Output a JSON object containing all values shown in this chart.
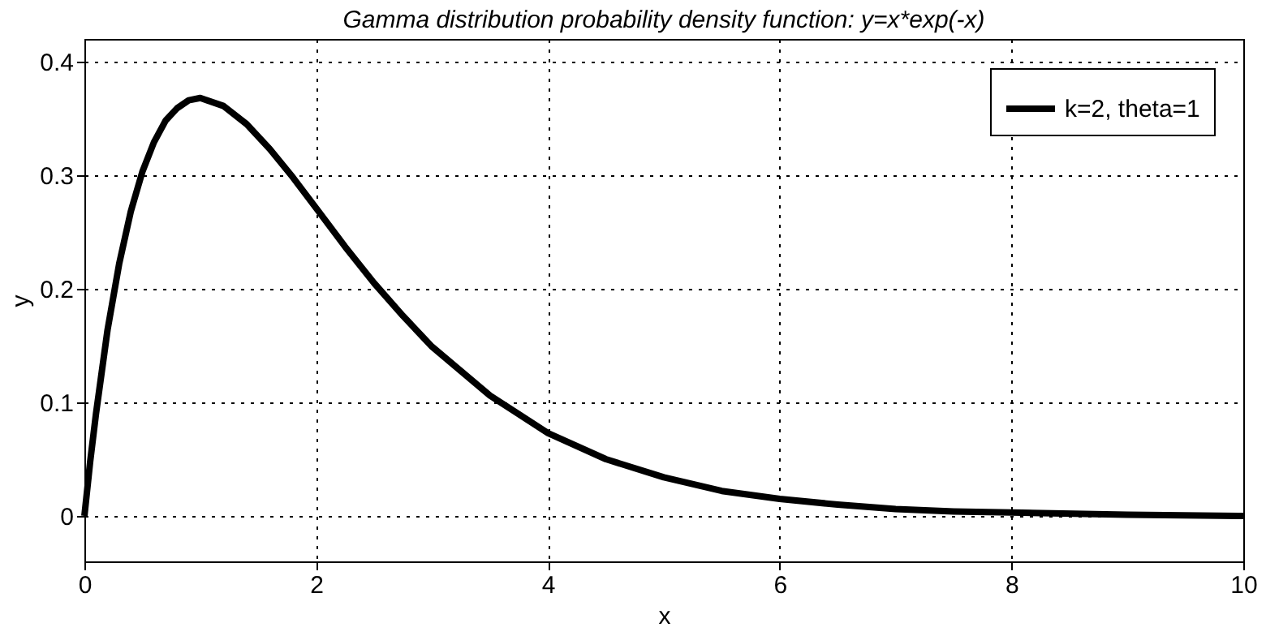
{
  "chart_data": {
    "type": "line",
    "title": "Gamma distribution probability density function: y=x*exp(-x)",
    "xlabel": "x",
    "ylabel": "y",
    "x": [
      0,
      0.05,
      0.1,
      0.2,
      0.3,
      0.4,
      0.5,
      0.6,
      0.7,
      0.8,
      0.9,
      1.0,
      1.2,
      1.4,
      1.6,
      1.8,
      2.0,
      2.25,
      2.5,
      2.75,
      3.0,
      3.5,
      4.0,
      4.5,
      5.0,
      5.5,
      6.0,
      6.5,
      7.0,
      7.5,
      8.0,
      9.0,
      10.0
    ],
    "series": [
      {
        "name": "k=2, theta=1",
        "color": "#000000",
        "values": [
          0,
          0.048,
          0.09,
          0.164,
          0.222,
          0.268,
          0.303,
          0.329,
          0.348,
          0.359,
          0.366,
          0.368,
          0.361,
          0.345,
          0.323,
          0.298,
          0.271,
          0.237,
          0.205,
          0.176,
          0.149,
          0.106,
          0.073,
          0.05,
          0.034,
          0.022,
          0.015,
          0.01,
          0.006,
          0.004,
          0.003,
          0.001,
          0.0
        ]
      }
    ],
    "xlim": [
      0,
      10
    ],
    "xticks": [
      0,
      2,
      4,
      6,
      8,
      10
    ],
    "ylim": [
      -0.04,
      0.42
    ],
    "yticks": [
      0,
      0.1,
      0.2,
      0.3,
      0.4
    ],
    "grid": true,
    "legend": "top right",
    "marker": "none",
    "line_style": "solid"
  }
}
